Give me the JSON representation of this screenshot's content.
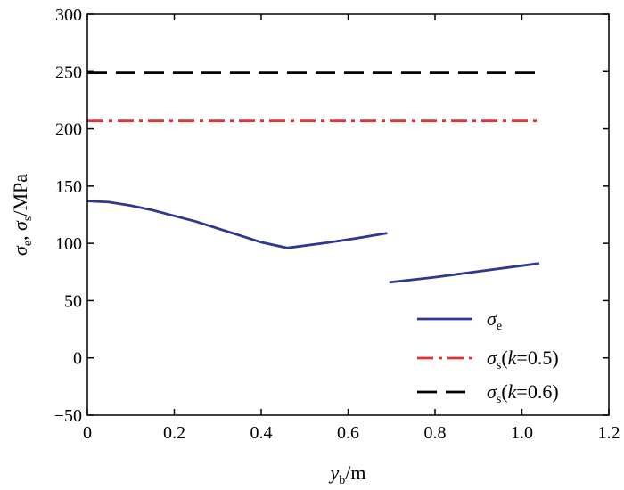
{
  "chart_data": {
    "type": "line",
    "title": "",
    "xlabel": {
      "main": "y",
      "sub": "b",
      "unit": "/m"
    },
    "ylabel": {
      "s1": "σ",
      "s1sub": "e",
      "sep": ", ",
      "s2": "σ",
      "s2sub": "s",
      "unit": "/MPa"
    },
    "xlim": [
      0,
      1.2
    ],
    "ylim": [
      -50,
      300
    ],
    "xticks": [
      0,
      0.2,
      0.4,
      0.6,
      0.8,
      1.0,
      1.2
    ],
    "xtick_labels": [
      "0",
      "0.2",
      "0.4",
      "0.6",
      "0.8",
      "1.0",
      "1.2"
    ],
    "yticks": [
      -50,
      0,
      50,
      100,
      150,
      200,
      250,
      300
    ],
    "ytick_labels": [
      "−50",
      "0",
      "50",
      "100",
      "150",
      "200",
      "250",
      "300"
    ],
    "grid": false,
    "legend_position": "bottom-right",
    "series": [
      {
        "key": "sigma_e",
        "legend": {
          "sym": "σ",
          "sub": "e",
          "rest": ""
        },
        "color": "#2b3990",
        "style": "solid",
        "segments": [
          [
            [
              0,
              137
            ],
            [
              0.05,
              136
            ],
            [
              0.1,
              133
            ],
            [
              0.15,
              129
            ],
            [
              0.2,
              124
            ],
            [
              0.25,
              119
            ],
            [
              0.3,
              113
            ],
            [
              0.35,
              107
            ],
            [
              0.4,
              101
            ],
            [
              0.46,
              96
            ],
            [
              0.55,
              100.5
            ],
            [
              0.62,
              104.5
            ],
            [
              0.69,
              109
            ]
          ],
          [
            [
              0.695,
              66
            ],
            [
              0.8,
              70.5
            ],
            [
              0.9,
              75.5
            ],
            [
              1.0,
              80.5
            ],
            [
              1.04,
              82.5
            ]
          ]
        ]
      },
      {
        "key": "sigma_s_k05",
        "legend": {
          "sym": "σ",
          "sub": "s",
          "rest": "(k=0.5)"
        },
        "color": "#e8312f",
        "style": "dashdot",
        "segments": [
          [
            [
              0,
              207
            ],
            [
              1.04,
              207
            ]
          ]
        ]
      },
      {
        "key": "sigma_s_k06",
        "legend": {
          "sym": "σ",
          "sub": "s",
          "rest": "(k=0.6)"
        },
        "color": "#000000",
        "style": "dashed",
        "segments": [
          [
            [
              0,
              249
            ],
            [
              1.04,
              249
            ]
          ]
        ]
      }
    ]
  }
}
